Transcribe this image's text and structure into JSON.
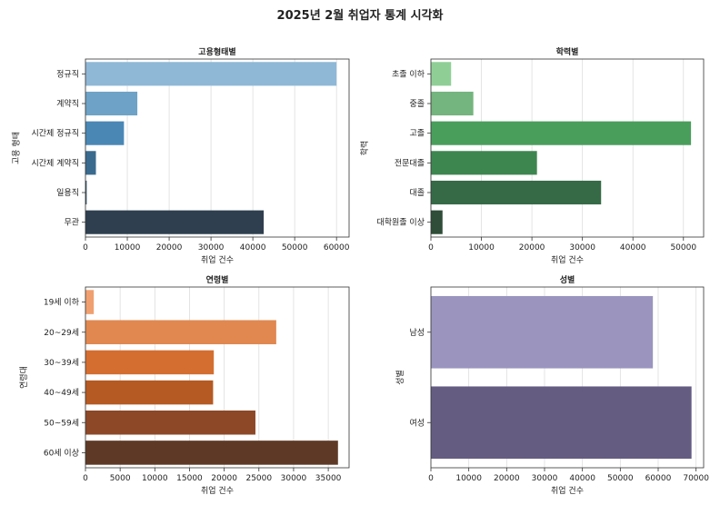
{
  "title": "2025년 2월 취업자 통계 시각화",
  "chart_data": [
    {
      "type": "bar",
      "orientation": "horizontal",
      "title": "고용형태별",
      "xlabel": "취업 건수",
      "ylabel": "고용 형태",
      "categories": [
        "정규직",
        "계약직",
        "시간제 정규직",
        "시간제 계약직",
        "일용직",
        "무관"
      ],
      "values": [
        60000,
        12400,
        9200,
        2500,
        300,
        42600
      ],
      "colors": [
        "#8fb8d6",
        "#6ea2c6",
        "#4a87b5",
        "#3a6b8e",
        "#36546b",
        "#2f3f4f"
      ],
      "xlim": [
        0,
        63000
      ],
      "xticks": [
        0,
        10000,
        20000,
        30000,
        40000,
        50000,
        60000
      ]
    },
    {
      "type": "bar",
      "orientation": "horizontal",
      "title": "학력별",
      "xlabel": "취업 건수",
      "ylabel": "학력",
      "categories": [
        "초졸 이하",
        "중졸",
        "고졸",
        "전문대졸",
        "대졸",
        "대학원졸 이상"
      ],
      "values": [
        4000,
        8400,
        51500,
        21000,
        33700,
        2300
      ],
      "colors": [
        "#8fcf96",
        "#74b47e",
        "#4a9e5c",
        "#3d8650",
        "#366a47",
        "#2f4d38"
      ],
      "xlim": [
        0,
        54000
      ],
      "xticks": [
        0,
        10000,
        20000,
        30000,
        40000,
        50000
      ]
    },
    {
      "type": "bar",
      "orientation": "horizontal",
      "title": "연령별",
      "xlabel": "취업 건수",
      "ylabel": "연령대",
      "categories": [
        "19세 이하",
        "20~29세",
        "30~39세",
        "40~49세",
        "50~59세",
        "60세 이상"
      ],
      "values": [
        1200,
        27500,
        18500,
        18400,
        24500,
        36400
      ],
      "colors": [
        "#f0a070",
        "#e08850",
        "#d46e30",
        "#b55a22",
        "#8d4828",
        "#5e3a26"
      ],
      "xlim": [
        0,
        38000
      ],
      "xticks": [
        0,
        5000,
        10000,
        15000,
        20000,
        25000,
        30000,
        35000
      ]
    },
    {
      "type": "bar",
      "orientation": "horizontal",
      "title": "성별",
      "xlabel": "취업 건수",
      "ylabel": "성별",
      "categories": [
        "남성",
        "여성"
      ],
      "values": [
        58600,
        68800
      ],
      "colors": [
        "#9a94bf",
        "#655c82"
      ],
      "xlim": [
        0,
        72000
      ],
      "xticks": [
        0,
        10000,
        20000,
        30000,
        40000,
        50000,
        60000,
        70000
      ]
    }
  ]
}
